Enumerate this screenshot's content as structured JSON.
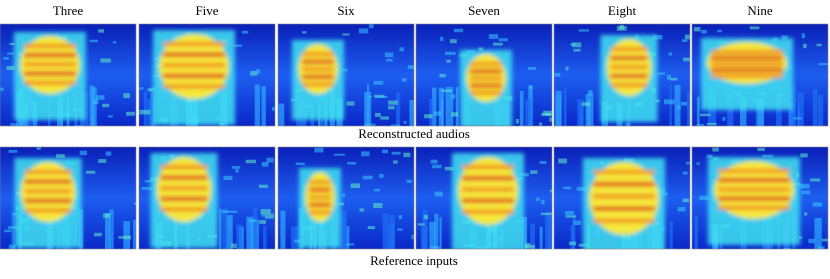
{
  "column_titles": [
    "Three",
    "Five",
    "Six",
    "Seven",
    "Eight",
    "Nine"
  ],
  "rows": [
    {
      "caption": "Reconstructed audios"
    },
    {
      "caption": "Reference inputs"
    }
  ]
}
